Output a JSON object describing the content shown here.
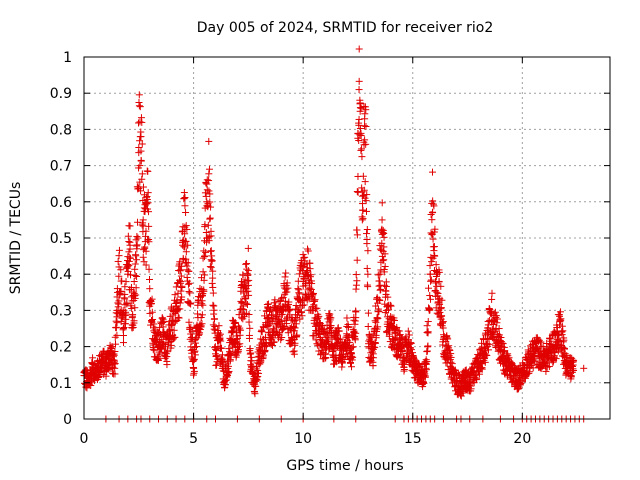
{
  "chart_data": {
    "type": "scatter",
    "title": "Day 005 of 2024, SRMTID for receiver rio2",
    "xlabel": "GPS time / hours",
    "ylabel": "SRMTID / TECUs",
    "xlim": [
      0,
      24
    ],
    "ylim": [
      0,
      1
    ],
    "x_ticks": [
      0,
      5,
      10,
      15,
      20
    ],
    "x_tick_labels": [
      "0",
      "5",
      "10",
      "15",
      "20"
    ],
    "y_ticks": [
      0,
      0.1,
      0.2,
      0.3,
      0.4,
      0.5,
      0.6,
      0.7,
      0.8,
      0.9,
      1
    ],
    "y_tick_labels": [
      "0",
      "0.1",
      "0.2",
      "0.3",
      "0.4",
      "0.5",
      "0.6",
      "0.7",
      "0.8",
      "0.9",
      "1"
    ],
    "grid": true,
    "marker": "+",
    "color": "#e00000",
    "series": [
      {
        "name": "SRMTID",
        "points": [
          [
            0.0,
            0.12
          ],
          [
            0.2,
            0.1
          ],
          [
            0.4,
            0.14
          ],
          [
            0.6,
            0.13
          ],
          [
            0.8,
            0.16
          ],
          [
            1.0,
            0.15
          ],
          [
            1.2,
            0.18
          ],
          [
            1.4,
            0.14
          ],
          [
            1.5,
            0.3
          ],
          [
            1.6,
            0.42
          ],
          [
            1.8,
            0.25
          ],
          [
            2.0,
            0.4
          ],
          [
            2.1,
            0.48
          ],
          [
            2.2,
            0.26
          ],
          [
            2.3,
            0.34
          ],
          [
            2.4,
            0.44
          ],
          [
            2.5,
            0.75
          ],
          [
            2.55,
            0.7
          ],
          [
            2.6,
            0.74
          ],
          [
            2.7,
            0.55
          ],
          [
            2.8,
            0.49
          ],
          [
            2.9,
            0.58
          ],
          [
            3.0,
            0.36
          ],
          [
            3.2,
            0.22
          ],
          [
            3.4,
            0.2
          ],
          [
            3.6,
            0.24
          ],
          [
            3.8,
            0.19
          ],
          [
            4.0,
            0.26
          ],
          [
            4.2,
            0.3
          ],
          [
            4.4,
            0.38
          ],
          [
            4.5,
            0.48
          ],
          [
            4.6,
            0.53
          ],
          [
            4.8,
            0.32
          ],
          [
            5.0,
            0.14
          ],
          [
            5.2,
            0.28
          ],
          [
            5.4,
            0.34
          ],
          [
            5.5,
            0.45
          ],
          [
            5.6,
            0.6
          ],
          [
            5.7,
            0.63
          ],
          [
            5.8,
            0.44
          ],
          [
            6.0,
            0.18
          ],
          [
            6.2,
            0.22
          ],
          [
            6.4,
            0.1
          ],
          [
            6.6,
            0.16
          ],
          [
            6.8,
            0.24
          ],
          [
            7.0,
            0.2
          ],
          [
            7.2,
            0.32
          ],
          [
            7.4,
            0.36
          ],
          [
            7.5,
            0.41
          ],
          [
            7.6,
            0.15
          ],
          [
            7.8,
            0.09
          ],
          [
            8.0,
            0.18
          ],
          [
            8.2,
            0.22
          ],
          [
            8.4,
            0.28
          ],
          [
            8.6,
            0.24
          ],
          [
            8.8,
            0.3
          ],
          [
            9.0,
            0.27
          ],
          [
            9.2,
            0.35
          ],
          [
            9.4,
            0.25
          ],
          [
            9.6,
            0.22
          ],
          [
            9.8,
            0.33
          ],
          [
            10.0,
            0.38
          ],
          [
            10.2,
            0.41
          ],
          [
            10.4,
            0.3
          ],
          [
            10.6,
            0.26
          ],
          [
            10.8,
            0.22
          ],
          [
            11.0,
            0.2
          ],
          [
            11.2,
            0.25
          ],
          [
            11.4,
            0.19
          ],
          [
            11.6,
            0.21
          ],
          [
            11.8,
            0.17
          ],
          [
            12.0,
            0.23
          ],
          [
            12.2,
            0.18
          ],
          [
            12.4,
            0.28
          ],
          [
            12.5,
            0.67
          ],
          [
            12.55,
            0.91
          ],
          [
            12.6,
            0.85
          ],
          [
            12.7,
            0.55
          ],
          [
            12.8,
            0.81
          ],
          [
            12.9,
            0.62
          ],
          [
            13.0,
            0.2
          ],
          [
            13.2,
            0.18
          ],
          [
            13.4,
            0.32
          ],
          [
            13.5,
            0.4
          ],
          [
            13.6,
            0.55
          ],
          [
            13.8,
            0.3
          ],
          [
            14.0,
            0.26
          ],
          [
            14.2,
            0.22
          ],
          [
            14.4,
            0.2
          ],
          [
            14.6,
            0.17
          ],
          [
            14.8,
            0.21
          ],
          [
            15.0,
            0.15
          ],
          [
            15.2,
            0.13
          ],
          [
            15.4,
            0.11
          ],
          [
            15.6,
            0.14
          ],
          [
            15.8,
            0.4
          ],
          [
            15.9,
            0.57
          ],
          [
            16.0,
            0.45
          ],
          [
            16.1,
            0.35
          ],
          [
            16.2,
            0.38
          ],
          [
            16.4,
            0.22
          ],
          [
            16.6,
            0.18
          ],
          [
            16.8,
            0.13
          ],
          [
            17.0,
            0.1
          ],
          [
            17.2,
            0.09
          ],
          [
            17.4,
            0.11
          ],
          [
            17.6,
            0.1
          ],
          [
            17.8,
            0.13
          ],
          [
            18.0,
            0.15
          ],
          [
            18.2,
            0.18
          ],
          [
            18.4,
            0.22
          ],
          [
            18.6,
            0.29
          ],
          [
            18.8,
            0.25
          ],
          [
            19.0,
            0.19
          ],
          [
            19.2,
            0.16
          ],
          [
            19.4,
            0.14
          ],
          [
            19.6,
            0.12
          ],
          [
            19.8,
            0.11
          ],
          [
            20.0,
            0.13
          ],
          [
            20.2,
            0.15
          ],
          [
            20.4,
            0.17
          ],
          [
            20.6,
            0.19
          ],
          [
            20.8,
            0.18
          ],
          [
            21.0,
            0.16
          ],
          [
            21.2,
            0.18
          ],
          [
            21.4,
            0.2
          ],
          [
            21.6,
            0.22
          ],
          [
            21.7,
            0.26
          ],
          [
            21.8,
            0.24
          ],
          [
            21.9,
            0.18
          ],
          [
            22.0,
            0.15
          ],
          [
            22.2,
            0.14
          ],
          [
            22.8,
            0.14
          ]
        ]
      }
    ],
    "zero_markers_x": [
      1.0,
      1.6,
      2.0,
      2.4,
      2.6,
      3.0,
      3.4,
      3.8,
      4.2,
      4.6,
      5.0,
      5.6,
      6.0,
      7.0,
      8.0,
      9.0,
      10.0,
      11.4,
      12.4,
      14.2,
      14.6,
      14.8,
      15.0,
      15.2,
      15.4,
      15.6,
      15.8,
      16.0,
      16.4,
      17.0,
      17.2,
      17.6,
      18.2,
      19.0,
      19.6,
      20.0,
      20.2,
      20.4,
      20.6,
      20.8,
      21.0,
      21.2,
      21.4,
      21.6,
      21.8,
      22.0,
      22.2,
      22.4,
      22.6,
      22.8
    ]
  }
}
